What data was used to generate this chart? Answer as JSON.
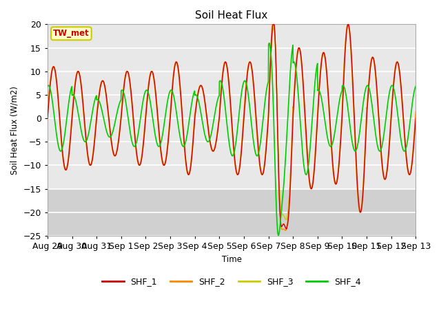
{
  "title": "Soil Heat Flux",
  "ylabel": "Soil Heat Flux (W/m2)",
  "xlabel": "Time",
  "annotation": "TW_met",
  "ylim": [
    -25,
    20
  ],
  "yticks": [
    -25,
    -20,
    -15,
    -10,
    -5,
    0,
    5,
    10,
    15,
    20
  ],
  "xtick_labels": [
    "Aug 29",
    "Aug 30",
    "Aug 31",
    "Sep 1",
    "Sep 2",
    "Sep 3",
    "Sep 4",
    "Sep 5",
    "Sep 6",
    "Sep 7",
    "Sep 8",
    "Sep 9",
    "Sep 10",
    "Sep 11",
    "Sep 12",
    "Sep 13"
  ],
  "n_days": 15,
  "colors": {
    "SHF_1": "#cc0000",
    "SHF_2": "#ff8800",
    "SHF_3": "#cccc00",
    "SHF_4": "#00cc00"
  },
  "bg_color": "#e8e8e8",
  "annotation_bg": "#ffffcc",
  "annotation_border": "#cccc00",
  "figsize": [
    6.4,
    4.8
  ],
  "dpi": 100
}
